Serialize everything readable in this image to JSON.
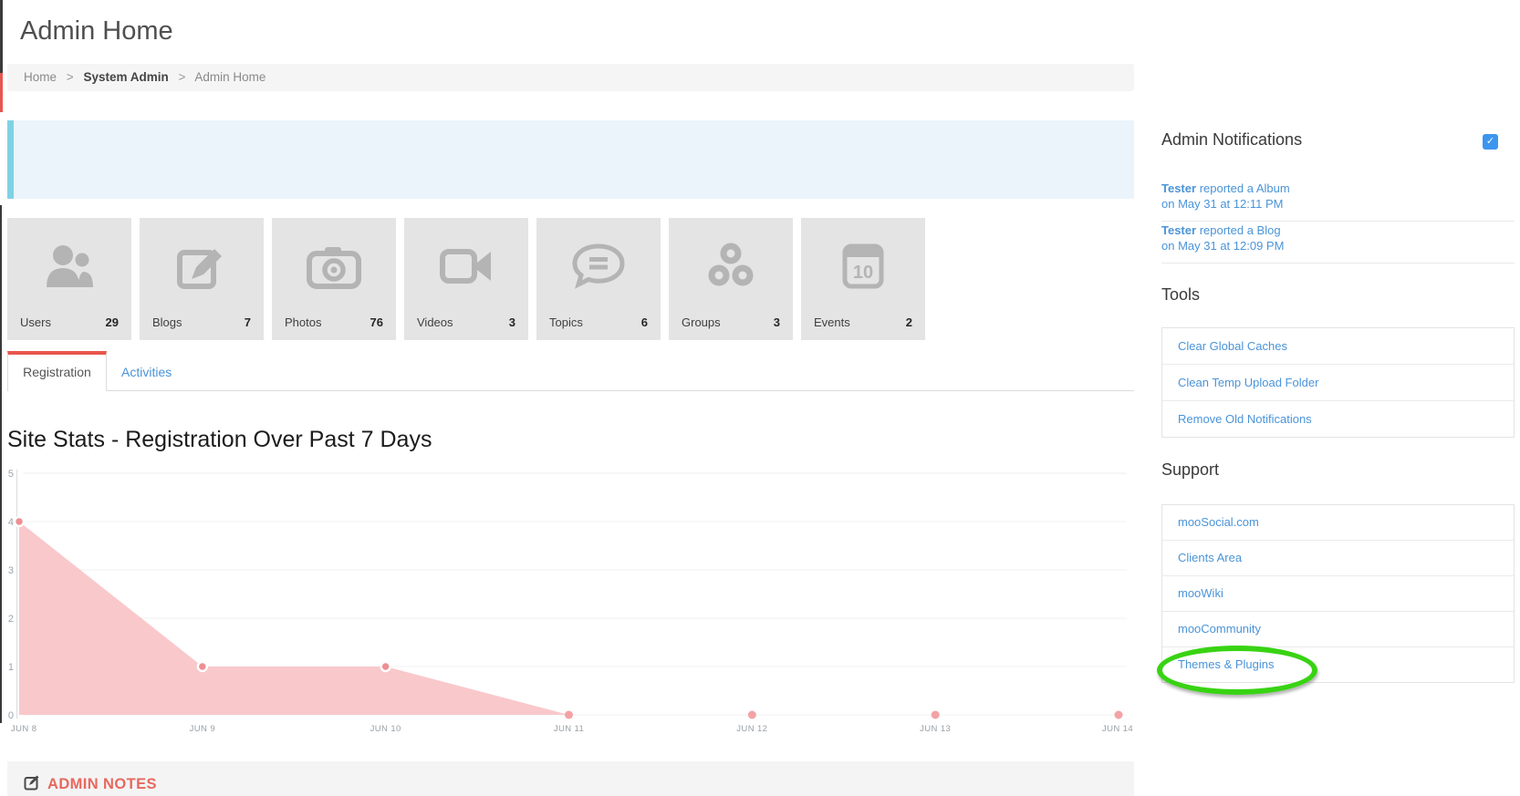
{
  "page": {
    "title": "Admin Home"
  },
  "breadcrumb": {
    "separator": ">",
    "items": [
      {
        "label": "Home"
      },
      {
        "label": "System Admin"
      },
      {
        "label": "Admin Home"
      }
    ]
  },
  "stats": [
    {
      "label": "Users",
      "value": "29",
      "icon": "users-icon"
    },
    {
      "label": "Blogs",
      "value": "7",
      "icon": "blog-compose-icon"
    },
    {
      "label": "Photos",
      "value": "76",
      "icon": "camera-icon"
    },
    {
      "label": "Videos",
      "value": "3",
      "icon": "video-camera-icon"
    },
    {
      "label": "Topics",
      "value": "6",
      "icon": "comment-icon"
    },
    {
      "label": "Groups",
      "value": "3",
      "icon": "group-circles-icon"
    },
    {
      "label": "Events",
      "value": "2",
      "icon": "calendar-icon",
      "icon_text": "10"
    }
  ],
  "tabs": [
    {
      "label": "Registration",
      "active": true
    },
    {
      "label": "Activities",
      "active": false
    }
  ],
  "chart_data": {
    "type": "area",
    "title": "Site Stats - Registration Over Past 7 Days",
    "x": [
      "Jun 8",
      "Jun 9",
      "Jun 10",
      "Jun 11",
      "Jun 12",
      "Jun 13",
      "Jun 14"
    ],
    "values": [
      4,
      1,
      1,
      0,
      0,
      0,
      0
    ],
    "xlabel": "",
    "ylabel": "",
    "ylim": [
      0,
      5
    ],
    "yticks": [
      0,
      1,
      2,
      3,
      4,
      5
    ],
    "grid": true,
    "legend": "none",
    "fill_color": "#f9c8cb",
    "point_color": "#ee8e92",
    "zero_point_color": "#f3a2a6"
  },
  "admin_notes": {
    "title": "ADMIN NOTES"
  },
  "sidebar": {
    "notifications": {
      "title": "Admin Notifications",
      "checkbox_checked": true,
      "check_glyph": "✓",
      "items": [
        {
          "actor": "Tester",
          "action": "reported a Album",
          "time": "on May 31 at 12:11 PM"
        },
        {
          "actor": "Tester",
          "action": "reported a Blog",
          "time": "on May 31 at 12:09 PM"
        }
      ]
    },
    "tools": {
      "title": "Tools",
      "items": [
        {
          "label": "Clear Global Caches",
          "highlighted": true
        },
        {
          "label": "Clean Temp Upload Folder",
          "highlighted": false
        },
        {
          "label": "Remove Old Notifications",
          "highlighted": false
        }
      ]
    },
    "support": {
      "title": "Support",
      "items": [
        {
          "label": "mooSocial.com"
        },
        {
          "label": "Clients Area"
        },
        {
          "label": "mooWiki"
        },
        {
          "label": "mooCommunity"
        },
        {
          "label": "Themes & Plugins"
        }
      ]
    }
  },
  "colors": {
    "accent_red": "#e8564e",
    "link_blue": "#4a94d8",
    "highlight_green": "#38d313",
    "checkbox_blue": "#3d96ee",
    "chart_fill": "#f9c8cb",
    "chart_point": "#ee8e92",
    "tile_bg": "#e4e4e4",
    "icon_gray": "#b4b4b4"
  }
}
